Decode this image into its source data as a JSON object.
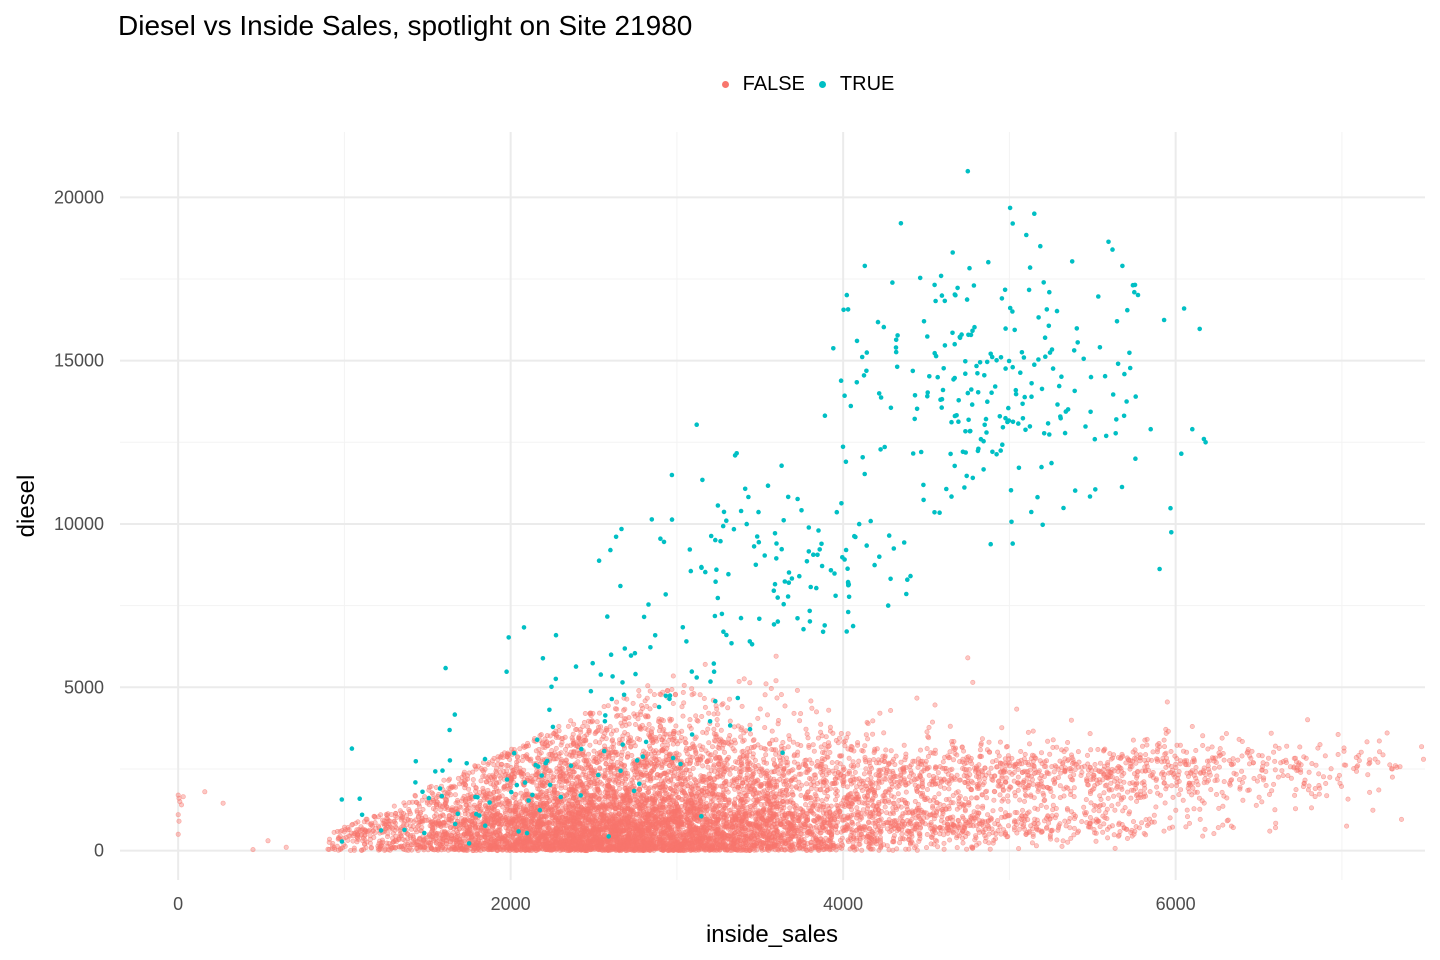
{
  "chart_data": {
    "type": "scatter",
    "title": "Diesel vs Inside Sales, spotlight on Site 21980",
    "xlabel": "inside_sales",
    "ylabel": "diesel",
    "xlim": [
      -350,
      7500
    ],
    "ylim": [
      -900,
      22000
    ],
    "x_ticks": [
      "0",
      "2000",
      "4000",
      "6000"
    ],
    "y_ticks": [
      "0",
      "5000",
      "10000",
      "15000",
      "20000"
    ],
    "grid": true,
    "legend_position": "top",
    "legend": [
      {
        "label": "FALSE",
        "color": "#F8766D"
      },
      {
        "label": "TRUE",
        "color": "#00BFC4"
      }
    ],
    "series": [
      {
        "name": "FALSE",
        "color": "#F8766D",
        "opacity": 0.45,
        "clusters": [
          {
            "x_center": 2600,
            "x_spread": 700,
            "y_center": 500,
            "y_spread": 600,
            "count": 3500
          },
          {
            "x_center": 2500,
            "x_spread": 600,
            "y_center": 2000,
            "y_spread": 1500,
            "count": 2500
          },
          {
            "x_center": 3600,
            "x_spread": 700,
            "y_center": 1600,
            "y_spread": 1000,
            "count": 1700
          },
          {
            "x_center": 5500,
            "x_spread": 900,
            "y_center": 2400,
            "y_spread": 500,
            "count": 900
          },
          {
            "x_center": 4800,
            "x_spread": 700,
            "y_center": 800,
            "y_spread": 300,
            "count": 500
          }
        ],
        "points": [
          {
            "x": 0,
            "y": 1700
          },
          {
            "x": 5,
            "y": 1600
          },
          {
            "x": 10,
            "y": 1500
          },
          {
            "x": 20,
            "y": 1400
          },
          {
            "x": 30,
            "y": 1650
          },
          {
            "x": 0,
            "y": 1100
          },
          {
            "x": 5,
            "y": 900
          },
          {
            "x": 0,
            "y": 500
          },
          {
            "x": 160,
            "y": 1800
          },
          {
            "x": 270,
            "y": 1450
          },
          {
            "x": 450,
            "y": 30
          },
          {
            "x": 540,
            "y": 300
          },
          {
            "x": 650,
            "y": 100
          },
          {
            "x": 7200,
            "y": 2800
          },
          {
            "x": 6600,
            "y": 3200
          },
          {
            "x": 6900,
            "y": 2900
          },
          {
            "x": 5950,
            "y": 4550
          },
          {
            "x": 6100,
            "y": 3800
          },
          {
            "x": 4750,
            "y": 5900
          },
          {
            "x": 4780,
            "y": 5150
          }
        ]
      },
      {
        "name": "TRUE",
        "color": "#00BFC4",
        "opacity": 1,
        "clusters": [
          {
            "x_center": 4900,
            "x_spread": 500,
            "y_center": 14300,
            "y_spread": 2100,
            "count": 240
          },
          {
            "x_center": 3700,
            "x_spread": 450,
            "y_center": 8800,
            "y_spread": 1400,
            "count": 120
          },
          {
            "x_center": 2700,
            "x_spread": 450,
            "y_center": 4300,
            "y_spread": 1500,
            "count": 70
          },
          {
            "x_center": 1700,
            "x_spread": 400,
            "y_center": 1700,
            "y_spread": 800,
            "count": 40
          }
        ],
        "points": [
          {
            "x": 4750,
            "y": 20800
          },
          {
            "x": 5150,
            "y": 19500
          },
          {
            "x": 5020,
            "y": 19200
          },
          {
            "x": 6170,
            "y": 12600
          },
          {
            "x": 6180,
            "y": 12500
          },
          {
            "x": 6100,
            "y": 12900
          },
          {
            "x": 4130,
            "y": 17900
          },
          {
            "x": 3350,
            "y": 12100
          },
          {
            "x": 2970,
            "y": 11500
          },
          {
            "x": 2600,
            "y": 9200
          },
          {
            "x": 2660,
            "y": 8100
          },
          {
            "x": 5680,
            "y": 17900
          },
          {
            "x": 5620,
            "y": 18400
          },
          {
            "x": 5760,
            "y": 13900
          },
          {
            "x": 5850,
            "y": 12900
          },
          {
            "x": 5020,
            "y": 9400
          }
        ]
      }
    ]
  }
}
